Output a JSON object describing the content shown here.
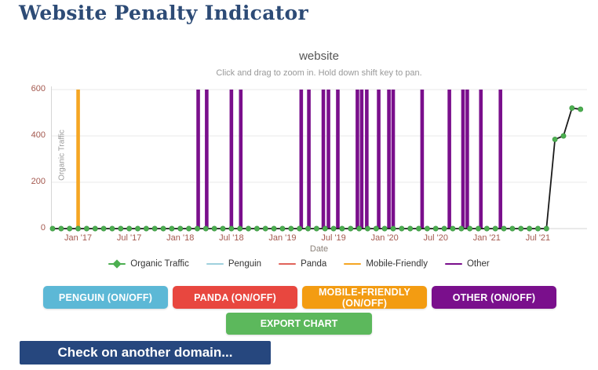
{
  "page": {
    "title": "Website Penalty Indicator",
    "title_color": "#2d4b76"
  },
  "chart": {
    "title": "website",
    "subtitle": "Click and drag to zoom in. Hold down shift key to pan.",
    "y_axis_label": "Organic Traffic",
    "x_axis_label": "Date",
    "tick_label_color": "#a3584e",
    "legend": [
      {
        "label": "Organic Traffic",
        "color": "#4caf50",
        "marker": "diamond"
      },
      {
        "label": "Penguin",
        "color": "#9fd0dd",
        "marker": "line"
      },
      {
        "label": "Panda",
        "color": "#e0635a",
        "marker": "line"
      },
      {
        "label": "Mobile-Friendly",
        "color": "#f5a623",
        "marker": "line"
      },
      {
        "label": "Other",
        "color": "#7a0f8c",
        "marker": "line"
      }
    ]
  },
  "chart_data": {
    "type": "line",
    "title": "website",
    "xlabel": "Date",
    "ylabel": "Organic Traffic",
    "ylim": [
      0,
      600
    ],
    "y_ticks": [
      0,
      200,
      400,
      600
    ],
    "x_domain": {
      "start_label": "Oct '16",
      "end_label": "Dec '21",
      "unit": "month",
      "n_months": 63
    },
    "x_ticks": [
      {
        "label": "Jan '17",
        "month_index": 3
      },
      {
        "label": "Jul '17",
        "month_index": 9
      },
      {
        "label": "Jan '18",
        "month_index": 15
      },
      {
        "label": "Jul '18",
        "month_index": 21
      },
      {
        "label": "Jan '19",
        "month_index": 27
      },
      {
        "label": "Jul '19",
        "month_index": 33
      },
      {
        "label": "Jan '20",
        "month_index": 39
      },
      {
        "label": "Jul '20",
        "month_index": 45
      },
      {
        "label": "Jan '21",
        "month_index": 51
      },
      {
        "label": "Jul '21",
        "month_index": 57
      }
    ],
    "series": [
      {
        "name": "Organic Traffic",
        "point_color": "#4caf50",
        "line_color": "#1a1a1a",
        "monthly_values": [
          0,
          0,
          0,
          0,
          0,
          0,
          0,
          0,
          0,
          0,
          0,
          0,
          0,
          0,
          0,
          0,
          0,
          0,
          0,
          0,
          0,
          0,
          0,
          0,
          0,
          0,
          0,
          0,
          0,
          0,
          0,
          0,
          0,
          0,
          0,
          0,
          0,
          0,
          0,
          0,
          0,
          0,
          0,
          0,
          0,
          0,
          0,
          0,
          0,
          0,
          0,
          0,
          0,
          0,
          0,
          0,
          0,
          0,
          0,
          385,
          400,
          520,
          515
        ]
      }
    ],
    "event_lines": {
      "mobile_friendly": {
        "color": "#f5a623",
        "month_indices": [
          3
        ]
      },
      "other": {
        "color": "#7a0f8c",
        "month_indices": [
          17.1,
          18.1,
          21.0,
          22.1,
          29.2,
          30.1,
          31.8,
          32.4,
          33.5,
          35.8,
          36.3,
          36.9,
          38.3,
          39.5,
          40.0,
          43.4,
          46.6,
          48.2,
          48.7,
          50.3,
          52.6
        ]
      }
    },
    "grid": true,
    "legend_position": "bottom"
  },
  "toggles": [
    {
      "label": "PENGUIN (ON/OFF)",
      "color": "#5cb8d6"
    },
    {
      "label": "PANDA (ON/OFF)",
      "color": "#e8473f"
    },
    {
      "label": "MOBILE-FRIENDLY (ON/OFF)",
      "color": "#f39c12"
    },
    {
      "label": "OTHER (ON/OFF)",
      "color": "#7a0f8c"
    }
  ],
  "export_button": {
    "label": "EXPORT CHART",
    "color": "#5cb85c"
  },
  "footer": {
    "button_label": "Check on another domain...",
    "color": "#26477e"
  }
}
